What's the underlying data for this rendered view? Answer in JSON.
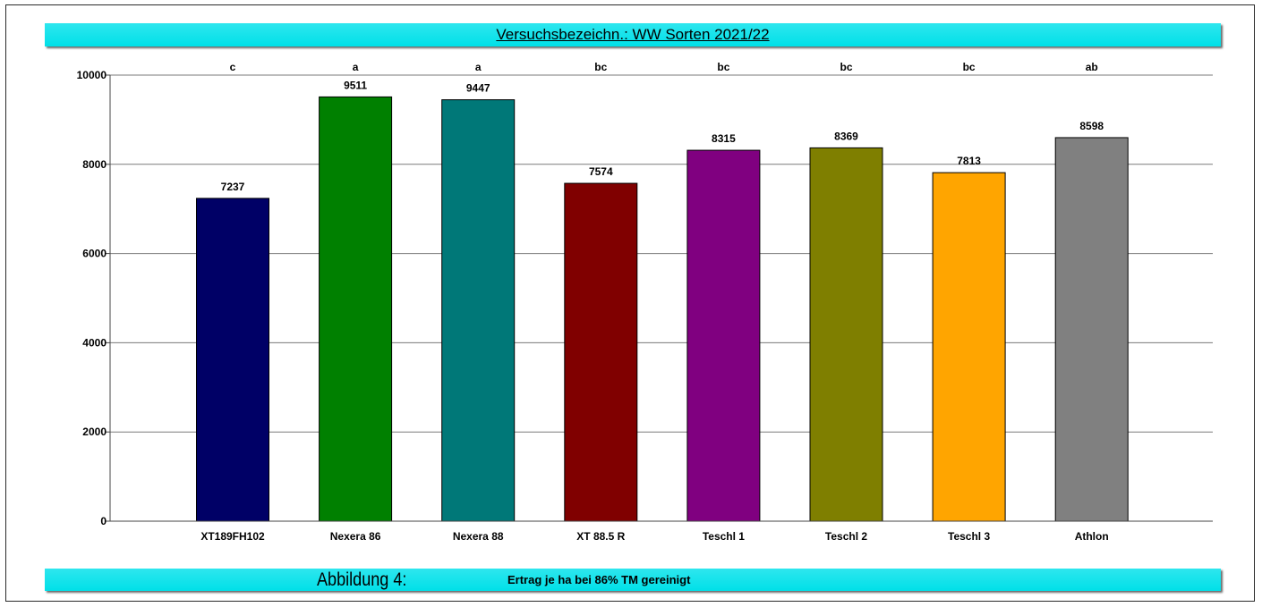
{
  "header": {
    "title": "Versuchsbezeichn.: WW Sorten 2021/22"
  },
  "footer": {
    "figure_label": "Abbildung 4:",
    "caption": "Ertrag je ha bei 86% TM gereinigt"
  },
  "chart_data": {
    "type": "bar",
    "title": "Versuchsbezeichn.: WW Sorten 2021/22",
    "xlabel": "",
    "ylabel": "",
    "ylim": [
      0,
      10000
    ],
    "yticks": [
      0,
      2000,
      4000,
      6000,
      8000,
      10000
    ],
    "grid": true,
    "categories": [
      "XT189FH102",
      "Nexera 86",
      "Nexera 88",
      "XT 88.5 R",
      "Teschl 1",
      "Teschl 2",
      "Teschl 3",
      "Athlon"
    ],
    "values": [
      7237,
      9511,
      9447,
      7574,
      8315,
      8369,
      7813,
      8598
    ],
    "significance_letters": [
      "c",
      "a",
      "a",
      "bc",
      "bc",
      "bc",
      "bc",
      "ab"
    ],
    "colors": [
      "#000066",
      "#008000",
      "#007878",
      "#800000",
      "#800080",
      "#7f7f00",
      "#ffa500",
      "#808080"
    ]
  }
}
